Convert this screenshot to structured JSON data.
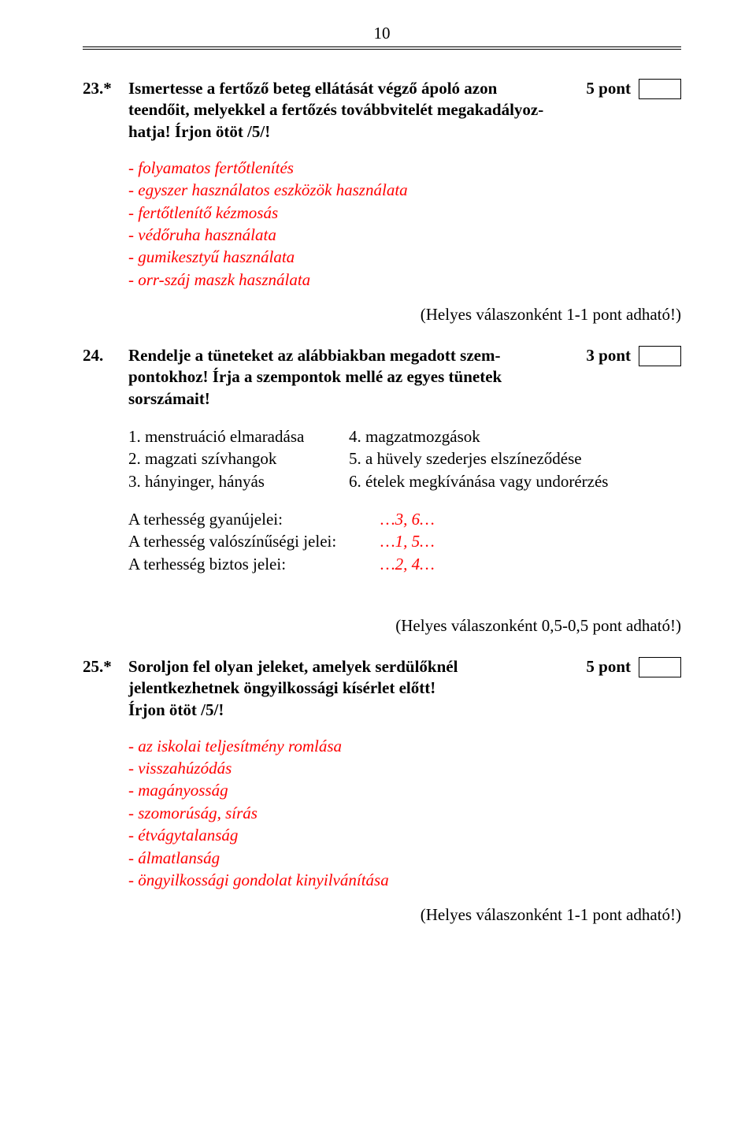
{
  "page_number": "10",
  "q23": {
    "num": "23.*",
    "title_l1": "Ismertesse a fertőző beteg ellátását végző ápoló azon",
    "title_l2": "teendőit, melyekkel a fertőzés továbbvitelét megakadályoz-",
    "title_l3": "hatja! Írjon ötöt /5/!",
    "points": "5 pont",
    "answers": [
      "- folyamatos fertőtlenítés",
      "- egyszer használatos eszközök használata",
      "- fertőtlenítő kézmosás",
      "- védőruha használata",
      "- gumikesztyű használata",
      "- orr-száj maszk használata"
    ],
    "note": "(Helyes válaszonként 1-1 pont adható!)"
  },
  "q24": {
    "num": "24.",
    "title_l1": "Rendelje a tüneteket az alábbiakban megadott szem-",
    "title_l2": "pontokhoz! Írja a szempontok mellé az egyes tünetek",
    "title_l3": "sorszámait!",
    "points": "3 pont",
    "list_a": [
      "1. menstruáció elmaradása",
      "2. magzati szívhangok",
      "3. hányinger, hányás"
    ],
    "list_b": [
      "4. magzatmozgások",
      "5. a hüvely szederjes elszíneződése",
      "6. ételek megkívánása vagy undorérzés"
    ],
    "matches": [
      {
        "label": "A terhesség gyanújelei:",
        "ans": "…3, 6…"
      },
      {
        "label": "A terhesség valószínűségi jelei:",
        "ans": "…1, 5…"
      },
      {
        "label": "A terhesség biztos jelei:",
        "ans": "…2, 4…"
      }
    ],
    "note": "(Helyes válaszonként 0,5-0,5 pont adható!)"
  },
  "q25": {
    "num": "25.*",
    "title_l1": "Soroljon fel olyan jeleket, amelyek serdülőknél",
    "title_l2": "jelentkezhetnek öngyilkossági kísérlet előtt!",
    "title_l3": "Írjon ötöt /5/!",
    "points": "5 pont",
    "answers": [
      "- az iskolai teljesítmény romlása",
      "- visszahúzódás",
      "- magányosság",
      "- szomorúság, sírás",
      "- étvágytalanság",
      "- álmatlanság",
      "- öngyilkossági gondolat kinyilvánítása"
    ],
    "note": "(Helyes válaszonként 1-1 pont adható!)"
  }
}
